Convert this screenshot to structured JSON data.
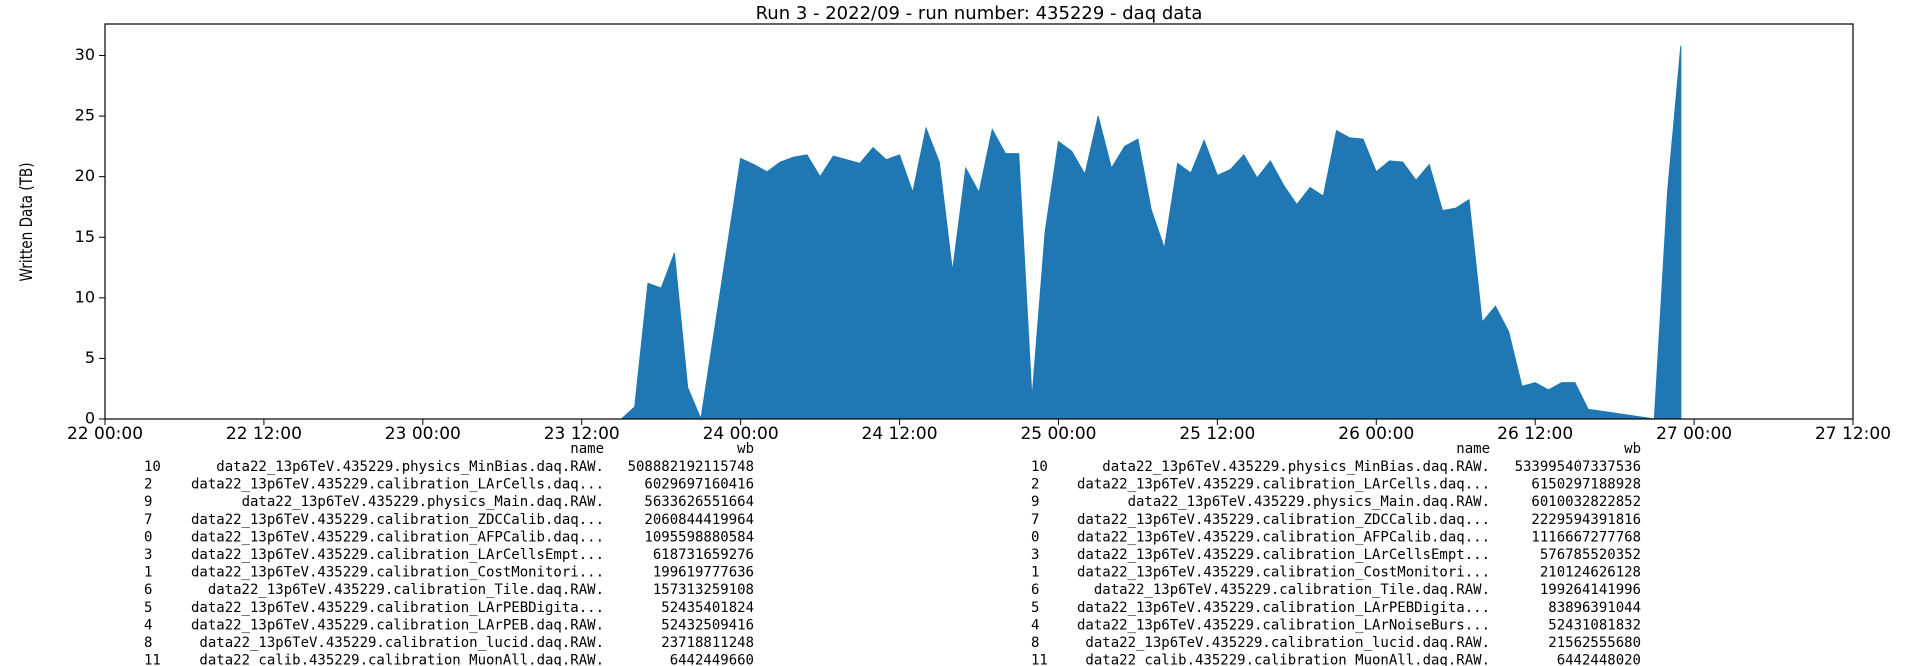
{
  "chart_data": {
    "type": "area",
    "title": "Run 3 - 2022/09 - run number: 435229 - daq data",
    "ylabel": "Written Data (TB)",
    "color": "#1f77b4",
    "x": [
      "22 00:00",
      "23 15:00",
      "23 16:00",
      "23 17:00",
      "23 18:00",
      "23 19:00",
      "23 20:00",
      "23 21:00",
      "24 00:00",
      "24 01:00",
      "24 02:00",
      "24 03:00",
      "24 04:00",
      "24 05:00",
      "24 06:00",
      "24 07:00",
      "24 08:00",
      "24 09:00",
      "24 10:00",
      "24 11:00",
      "24 12:00",
      "24 13:00",
      "24 14:00",
      "24 15:00",
      "24 16:00",
      "24 17:00",
      "24 18:00",
      "24 19:00",
      "24 20:00",
      "24 21:00",
      "24 22:00",
      "24 23:00",
      "25 00:00",
      "25 01:00",
      "25 02:00",
      "25 03:00",
      "25 04:00",
      "25 05:00",
      "25 06:00",
      "25 07:00",
      "25 08:00",
      "25 09:00",
      "25 10:00",
      "25 11:00",
      "25 12:00",
      "25 13:00",
      "25 14:00",
      "25 15:00",
      "25 16:00",
      "25 17:00",
      "25 18:00",
      "25 19:00",
      "25 20:00",
      "25 21:00",
      "25 22:00",
      "25 23:00",
      "26 00:00",
      "26 01:00",
      "26 02:00",
      "26 03:00",
      "26 04:00",
      "26 05:00",
      "26 06:00",
      "26 07:00",
      "26 08:00",
      "26 09:00",
      "26 10:00",
      "26 11:00",
      "26 12:00",
      "26 13:00",
      "26 14:00",
      "26 15:00",
      "26 16:00",
      "26 21:00",
      "26 22:00",
      "26 23:00"
    ],
    "values": [
      0,
      0,
      1,
      11.2,
      10.8,
      13.7,
      2.6,
      0,
      21.5,
      21,
      20.4,
      21.2,
      21.6,
      21.8,
      20,
      21.7,
      21.4,
      21.1,
      22.4,
      21.4,
      21.8,
      18.7,
      24,
      21.2,
      12.2,
      20.7,
      18.7,
      23.9,
      21.9,
      21.9,
      1.7,
      15.5,
      22.9,
      22.1,
      20.2,
      25,
      20.7,
      22.5,
      23.1,
      17.3,
      14.1,
      21.1,
      20.3,
      23,
      20.1,
      20.6,
      21.8,
      19.9,
      21.3,
      19.3,
      17.7,
      19.1,
      18.4,
      23.8,
      23.2,
      23.1,
      20.4,
      21.3,
      21.2,
      19.7,
      21,
      17.2,
      17.4,
      18.1,
      8,
      9.3,
      7.2,
      2.7,
      3,
      2.4,
      3,
      3,
      0.8,
      0,
      18.8,
      30.8
    ],
    "xlim": [
      "22 00:00",
      "27 12:00"
    ],
    "xticks": [
      "22 00:00",
      "22 12:00",
      "23 00:00",
      "23 12:00",
      "24 00:00",
      "24 12:00",
      "25 00:00",
      "25 12:00",
      "26 00:00",
      "26 12:00",
      "27 00:00",
      "27 12:00"
    ],
    "ylim": [
      0,
      32.6
    ],
    "yticks": [
      0,
      5,
      10,
      15,
      20,
      25,
      30
    ]
  },
  "tables": [
    {
      "columns": [
        "name",
        "wb"
      ],
      "rows": [
        [
          "10",
          "data22_13p6TeV.435229.physics_MinBias.daq.RAW.",
          "508882192115748"
        ],
        [
          "2",
          "data22_13p6TeV.435229.calibration_LArCells.daq...",
          "6029697160416"
        ],
        [
          "9",
          "data22_13p6TeV.435229.physics_Main.daq.RAW.",
          "5633626551664"
        ],
        [
          "7",
          "data22_13p6TeV.435229.calibration_ZDCCalib.daq...",
          "2060844419964"
        ],
        [
          "0",
          "data22_13p6TeV.435229.calibration_AFPCalib.daq...",
          "1095598880584"
        ],
        [
          "3",
          "data22_13p6TeV.435229.calibration_LArCellsEmpt...",
          "618731659276"
        ],
        [
          "1",
          "data22_13p6TeV.435229.calibration_CostMonitori...",
          "199619777636"
        ],
        [
          "6",
          "data22_13p6TeV.435229.calibration_Tile.daq.RAW.",
          "157313259108"
        ],
        [
          "5",
          "data22_13p6TeV.435229.calibration_LArPEBDigita...",
          "52435401824"
        ],
        [
          "4",
          "data22_13p6TeV.435229.calibration_LArPEB.daq.RAW.",
          "52432509416"
        ],
        [
          "8",
          "data22_13p6TeV.435229.calibration_lucid.daq.RAW.",
          "23718811248"
        ],
        [
          "11",
          "data22_calib.435229.calibration_MuonAll.daq.RAW.",
          "6442449660"
        ]
      ]
    },
    {
      "columns": [
        "name",
        "wb"
      ],
      "rows": [
        [
          "10",
          "data22_13p6TeV.435229.physics_MinBias.daq.RAW.",
          "533995407337536"
        ],
        [
          "2",
          "data22_13p6TeV.435229.calibration_LArCells.daq...",
          "6150297188928"
        ],
        [
          "9",
          "data22_13p6TeV.435229.physics_Main.daq.RAW.",
          "6010032822852"
        ],
        [
          "7",
          "data22_13p6TeV.435229.calibration_ZDCCalib.daq...",
          "2229594391816"
        ],
        [
          "0",
          "data22_13p6TeV.435229.calibration_AFPCalib.daq...",
          "1116667277768"
        ],
        [
          "3",
          "data22_13p6TeV.435229.calibration_LArCellsEmpt...",
          "576785520352"
        ],
        [
          "1",
          "data22_13p6TeV.435229.calibration_CostMonitori...",
          "210124626128"
        ],
        [
          "6",
          "data22_13p6TeV.435229.calibration_Tile.daq.RAW.",
          "199264141996"
        ],
        [
          "5",
          "data22_13p6TeV.435229.calibration_LArPEBDigita...",
          "83896391044"
        ],
        [
          "4",
          "data22_13p6TeV.435229.calibration_LArNoiseBurs...",
          "52431081832"
        ],
        [
          "8",
          "data22_13p6TeV.435229.calibration_lucid.daq.RAW.",
          "21562555680"
        ],
        [
          "11",
          "data22_calib.435229.calibration_MuonAll.daq.RAW.",
          "6442448020"
        ]
      ]
    }
  ]
}
